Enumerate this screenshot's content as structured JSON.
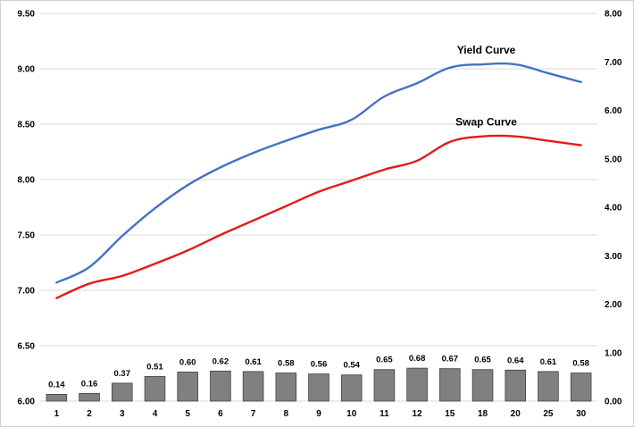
{
  "chart_data": {
    "type": "bar+line",
    "categories": [
      "1",
      "2",
      "3",
      "4",
      "5",
      "6",
      "7",
      "8",
      "9",
      "10",
      "11",
      "12",
      "15",
      "18",
      "20",
      "25",
      "30"
    ],
    "series": [
      {
        "name": "Yield Curve",
        "type": "line",
        "axis": "left",
        "color": "#4472C4",
        "values": [
          7.07,
          7.21,
          7.49,
          7.74,
          7.95,
          8.11,
          8.24,
          8.35,
          8.45,
          8.54,
          8.75,
          8.87,
          9.01,
          9.04,
          9.04,
          8.96,
          8.88
        ]
      },
      {
        "name": "Swap Curve",
        "type": "line",
        "axis": "left",
        "color": "#E41A1C",
        "values": [
          6.93,
          7.06,
          7.13,
          7.24,
          7.36,
          7.5,
          7.63,
          7.76,
          7.89,
          7.99,
          8.09,
          8.17,
          8.34,
          8.39,
          8.39,
          8.35,
          8.31
        ]
      },
      {
        "name": "",
        "type": "bar",
        "axis": "right",
        "color": "#808080",
        "values": [
          0.14,
          0.16,
          0.37,
          0.51,
          0.6,
          0.62,
          0.61,
          0.58,
          0.56,
          0.54,
          0.65,
          0.68,
          0.67,
          0.65,
          0.64,
          0.61,
          0.58
        ],
        "labels": [
          "0.14",
          "0.16",
          "0.37",
          "0.51",
          "0.60",
          "0.62",
          "0.61",
          "0.58",
          "0.56",
          "0.54",
          "0.65",
          "0.68",
          "0.67",
          "0.65",
          "0.64",
          "0.61",
          "0.58"
        ]
      }
    ],
    "y_left": {
      "min": 6.0,
      "max": 9.5,
      "step": 0.5,
      "ticks": [
        "6.00",
        "6.50",
        "7.00",
        "7.50",
        "8.00",
        "8.50",
        "9.00",
        "9.50"
      ]
    },
    "y_right": {
      "min": 0.0,
      "max": 8.0,
      "step": 1.0,
      "ticks": [
        "0.00",
        "1.00",
        "2.00",
        "3.00",
        "4.00",
        "5.00",
        "6.00",
        "7.00",
        "8.00"
      ]
    },
    "grid": true,
    "title": "",
    "xlabel": "",
    "ylabel": ""
  }
}
